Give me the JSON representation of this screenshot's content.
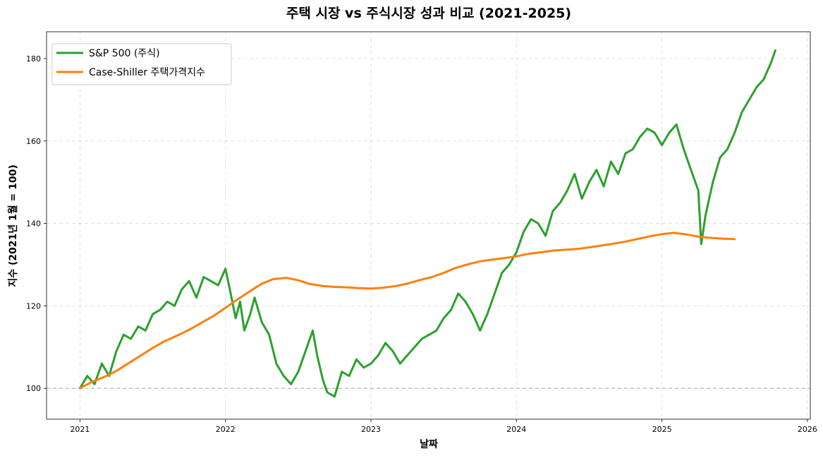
{
  "chart_data": {
    "type": "line",
    "title": "주택 시장 vs 주식시장 성과 비교 (2021-2025)",
    "xlabel": "날짜",
    "ylabel": "지수 (2021년 1월 = 100)",
    "xlim": [
      2020.77,
      2026.02
    ],
    "ylim": [
      92.5,
      186.5
    ],
    "x_ticks": [
      2021,
      2022,
      2023,
      2024,
      2025,
      2026
    ],
    "x_tick_labels": [
      "2021",
      "2022",
      "2023",
      "2024",
      "2025",
      "2026"
    ],
    "y_ticks": [
      100,
      120,
      140,
      160,
      180
    ],
    "y_tick_labels": [
      "100",
      "120",
      "140",
      "160",
      "180"
    ],
    "grid": true,
    "legend_position": "top-left",
    "reference_line": {
      "y": 100,
      "style": "dashed",
      "color": "#aaaaaa"
    },
    "series": [
      {
        "name": "S&P 500 (주식)",
        "color": "#2ca02c",
        "x": [
          2021.0,
          2021.05,
          2021.1,
          2021.15,
          2021.2,
          2021.25,
          2021.3,
          2021.35,
          2021.4,
          2021.45,
          2021.5,
          2021.55,
          2021.6,
          2021.65,
          2021.7,
          2021.75,
          2021.8,
          2021.85,
          2021.9,
          2021.95,
          2022.0,
          2022.03,
          2022.07,
          2022.1,
          2022.13,
          2022.17,
          2022.2,
          2022.25,
          2022.3,
          2022.35,
          2022.4,
          2022.45,
          2022.5,
          2022.55,
          2022.6,
          2022.63,
          2022.67,
          2022.7,
          2022.75,
          2022.8,
          2022.85,
          2022.9,
          2022.95,
          2023.0,
          2023.05,
          2023.1,
          2023.15,
          2023.2,
          2023.25,
          2023.3,
          2023.35,
          2023.4,
          2023.45,
          2023.5,
          2023.55,
          2023.6,
          2023.65,
          2023.7,
          2023.75,
          2023.8,
          2023.85,
          2023.9,
          2023.95,
          2024.0,
          2024.05,
          2024.1,
          2024.15,
          2024.2,
          2024.25,
          2024.3,
          2024.35,
          2024.4,
          2024.45,
          2024.5,
          2024.55,
          2024.6,
          2024.65,
          2024.7,
          2024.75,
          2024.8,
          2024.85,
          2024.9,
          2024.95,
          2025.0,
          2025.05,
          2025.1,
          2025.15,
          2025.2,
          2025.25,
          2025.27,
          2025.3,
          2025.35,
          2025.4,
          2025.45,
          2025.5,
          2025.55,
          2025.6,
          2025.65,
          2025.7,
          2025.75,
          2025.78
        ],
        "y": [
          100,
          103,
          101,
          106,
          103,
          109,
          113,
          112,
          115,
          114,
          118,
          119,
          121,
          120,
          124,
          126,
          122,
          127,
          126,
          125,
          129,
          124,
          117,
          121,
          114,
          118,
          122,
          116,
          113,
          106,
          103,
          101,
          104,
          109,
          114,
          108,
          102,
          99,
          98,
          104,
          103,
          107,
          105,
          106,
          108,
          111,
          109,
          106,
          108,
          110,
          112,
          113,
          114,
          117,
          119,
          123,
          121,
          118,
          114,
          118,
          123,
          128,
          130,
          133,
          138,
          141,
          140,
          137,
          143,
          145,
          148,
          152,
          146,
          150,
          153,
          149,
          155,
          152,
          157,
          158,
          161,
          163,
          162,
          159,
          162,
          164,
          158,
          153,
          148,
          135,
          142,
          150,
          156,
          158,
          162,
          167,
          170,
          173,
          175,
          179,
          182
        ]
      },
      {
        "name": "Case-Shiller 주택가격지수",
        "color": "#ff7f0e",
        "x": [
          2021.0,
          2021.08,
          2021.17,
          2021.25,
          2021.33,
          2021.42,
          2021.5,
          2021.58,
          2021.67,
          2021.75,
          2021.83,
          2021.92,
          2022.0,
          2022.08,
          2022.17,
          2022.25,
          2022.33,
          2022.42,
          2022.5,
          2022.58,
          2022.67,
          2022.75,
          2022.83,
          2022.92,
          2023.0,
          2023.08,
          2023.17,
          2023.25,
          2023.33,
          2023.42,
          2023.5,
          2023.58,
          2023.67,
          2023.75,
          2023.83,
          2023.92,
          2024.0,
          2024.08,
          2024.17,
          2024.25,
          2024.33,
          2024.42,
          2024.5,
          2024.58,
          2024.67,
          2024.75,
          2024.83,
          2024.92,
          2025.0,
          2025.08,
          2025.17,
          2025.25,
          2025.33,
          2025.42,
          2025.5
        ],
        "y": [
          100,
          101.5,
          102.8,
          104.2,
          106,
          108,
          109.8,
          111.4,
          112.8,
          114.2,
          115.8,
          117.6,
          119.5,
          121.5,
          123.6,
          125.4,
          126.5,
          126.8,
          126.2,
          125.3,
          124.8,
          124.6,
          124.5,
          124.3,
          124.2,
          124.4,
          124.8,
          125.4,
          126.2,
          127,
          128,
          129.2,
          130.1,
          130.8,
          131.2,
          131.6,
          132,
          132.6,
          133,
          133.4,
          133.6,
          133.8,
          134.2,
          134.6,
          135.1,
          135.6,
          136.2,
          136.9,
          137.4,
          137.7,
          137.3,
          136.8,
          136.5,
          136.3,
          136.2
        ]
      }
    ]
  }
}
